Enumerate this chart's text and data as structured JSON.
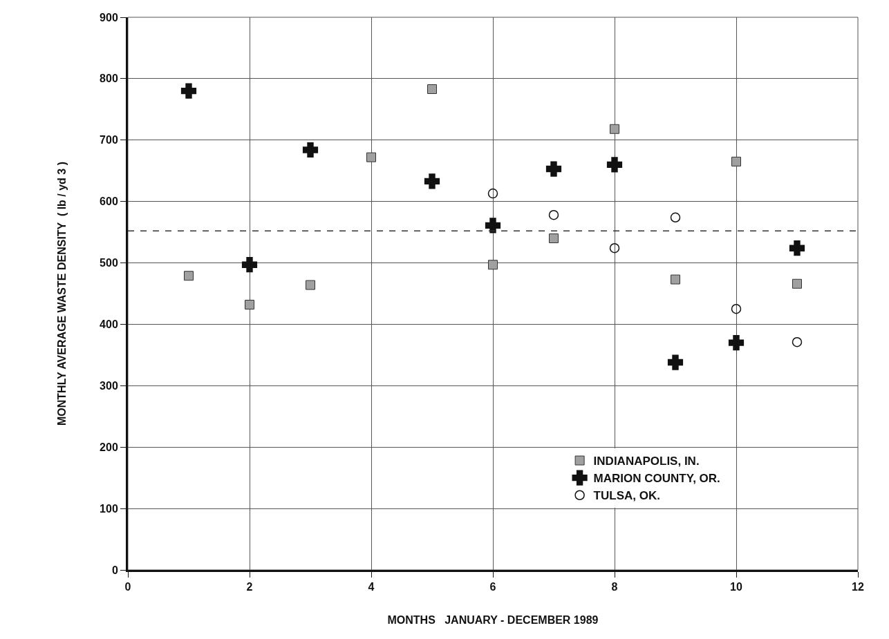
{
  "chart_data": {
    "type": "scatter",
    "xlabel": "MONTHS   JANUARY - DECEMBER 1989",
    "ylabel": "MONTHLY AVERAGE WASTE DENSITY  ( lb / yd 3 )",
    "series": [
      {
        "name": "INDIANAPOLIS, IN.",
        "color": "#a0a0a0",
        "marker": "square",
        "x": [
          1,
          2,
          3,
          4,
          5,
          6,
          7,
          8,
          9,
          10,
          11
        ],
        "values": [
          479,
          432,
          464,
          672,
          783,
          497,
          540,
          718,
          473,
          665,
          466
        ]
      },
      {
        "name": "MARION COUNTY, OR.",
        "color": "#111111",
        "marker": "cross",
        "x": [
          1,
          2,
          3,
          5,
          6,
          7,
          8,
          9,
          10,
          11
        ],
        "values": [
          780,
          497,
          684,
          633,
          561,
          653,
          660,
          338,
          370,
          524
        ]
      },
      {
        "name": "TULSA, OK.",
        "color": "#111111",
        "marker": "circle",
        "x": [
          6,
          7,
          8,
          9,
          10,
          11
        ],
        "values": [
          613,
          578,
          524,
          574,
          425,
          371
        ]
      }
    ],
    "ref_lines": [
      {
        "axis": "y",
        "value": 552,
        "color": "#333333",
        "line_style": "dashed"
      }
    ],
    "xlim": [
      0,
      12
    ],
    "xticks": [
      0,
      2,
      4,
      6,
      8,
      10,
      12
    ],
    "ylim": [
      0,
      900
    ],
    "yticks": [
      0,
      100,
      200,
      300,
      400,
      500,
      600,
      700,
      800,
      900
    ],
    "grid": true,
    "legend": "bottom right"
  }
}
